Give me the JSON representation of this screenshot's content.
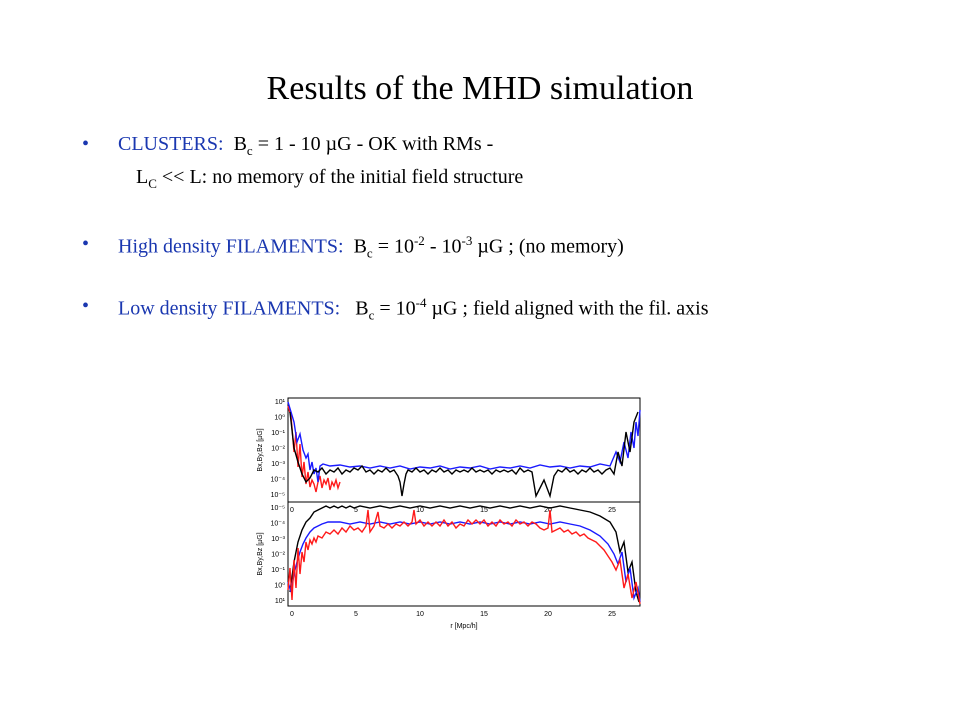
{
  "title": "Results of the MHD simulation",
  "bullets": [
    {
      "label": "CLUSTERS:",
      "eq_sym": "B",
      "eq_sub": "c",
      "eq_rest": "= 1 - 10 µG - OK with RMs -",
      "line2_sym": "L",
      "line2_sub": "C",
      "line2_rest": "<<  L: no memory of the initial field structure"
    },
    {
      "label": "High density FILAMENTS:",
      "eq_sym": "B",
      "eq_sub": "c",
      "eq_a": "= 10",
      "eq_a_exp": "-2",
      "eq_b": "- 10",
      "eq_b_exp": "-3",
      "eq_rest": "µG ; (no memory)"
    },
    {
      "label": "Low density FILAMENTS:",
      "eq_sym": "B",
      "eq_sub": "c",
      "eq_a": "= 10",
      "eq_a_exp": "-4",
      "eq_rest": "µG ;  field aligned with the fil. axis"
    }
  ],
  "figure": {
    "top_ylabel": "Bx,By,Bz [µG]",
    "bottom_ylabel": "Bx,By,Bz [µG]",
    "xlabel": "r [Mpc/h]",
    "top_yticks": [
      "10¹",
      "10⁰",
      "10⁻¹",
      "10⁻²",
      "10⁻³",
      "10⁻⁴",
      "10⁻⁵"
    ],
    "bottom_yticks": [
      "10⁻⁵",
      "10⁻⁴",
      "10⁻³",
      "10⁻²",
      "10⁻¹",
      "10⁰",
      "10¹"
    ],
    "xticks": [
      "0",
      "5",
      "10",
      "15",
      "20",
      "25"
    ],
    "colors": {
      "blue": "#1a1aff",
      "red": "#ff1a1a",
      "black": "#000000"
    }
  }
}
